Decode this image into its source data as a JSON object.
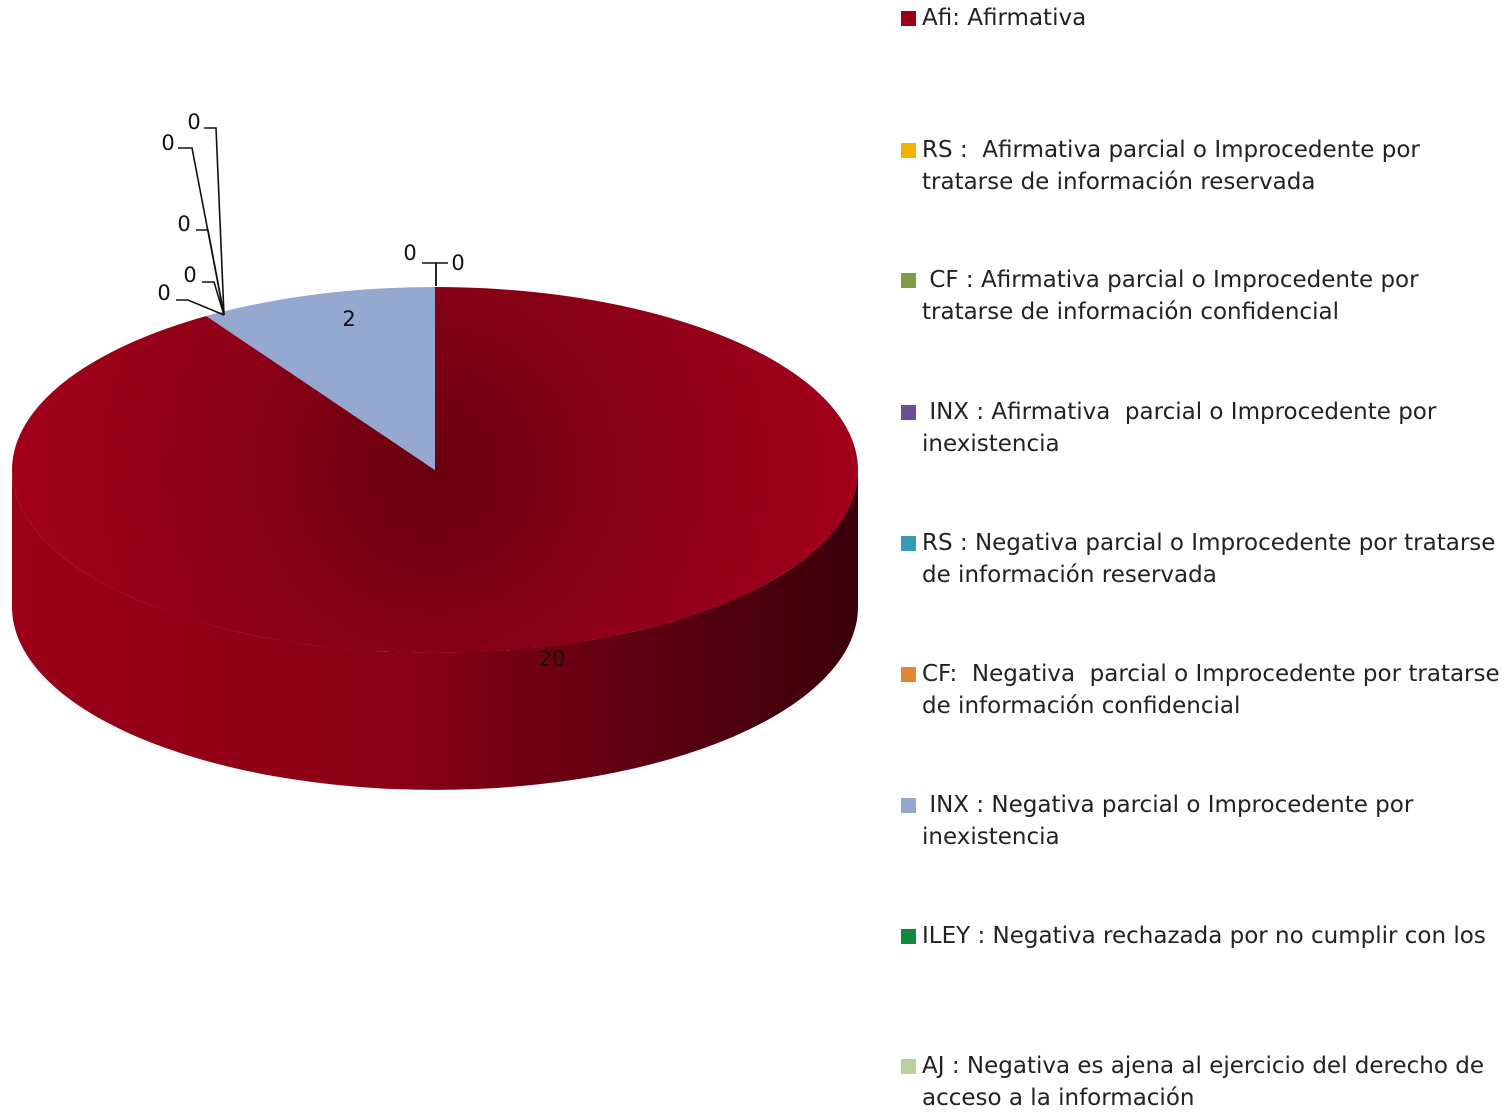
{
  "chart_data": {
    "type": "pie",
    "title": "",
    "legend_position": "right",
    "series": [
      {
        "name": "Afi: Afirmativa",
        "value": 20,
        "color": "#9B0019"
      },
      {
        "name": "RS :  Afirmativa parcial o Improcedente por tratarse de información reservada",
        "value": 0,
        "color": "#F0B400"
      },
      {
        "name": " CF : Afirmativa parcial o Improcedente por tratarse de información confidencial",
        "value": 0,
        "color": "#7F9A48"
      },
      {
        "name": " INX : Afirmativa  parcial o Improcedente por inexistencia",
        "value": 0,
        "color": "#6E4C96"
      },
      {
        "name": "RS : Negativa parcial o Improcedente por tratarse de información reservada",
        "value": 0,
        "color": "#3A9AB5"
      },
      {
        "name": "CF:  Negativa  parcial o Improcedente por tratarse de información confidencial",
        "value": 0,
        "color": "#E0883A"
      },
      {
        "name": " INX : Negativa parcial o Improcedente por inexistencia",
        "value": 2,
        "color": "#94A8D0"
      },
      {
        "name": "ILEY : Negativa rechazada por no cumplir con los",
        "value": 0,
        "color": "#0E8A3E"
      },
      {
        "name": "AJ : Negativa es ajena al ejercicio del derecho de acceso a la información",
        "value": 0,
        "color": "#B8D19B"
      }
    ]
  }
}
